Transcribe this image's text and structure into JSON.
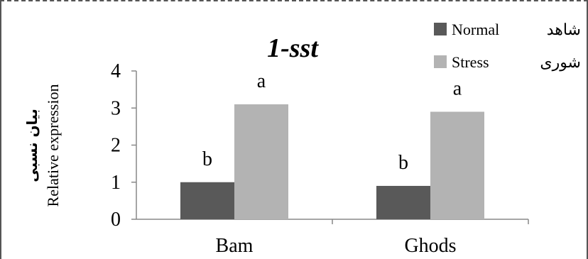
{
  "chart_data": {
    "type": "bar",
    "title": "1-sst",
    "ylabel_fa": "بیان نسبی",
    "ylabel": "Relative expression",
    "categories": [
      "Bam",
      "Ghods"
    ],
    "ylim": [
      0,
      4
    ],
    "yticks": [
      "0",
      "1",
      "2",
      "3",
      "4"
    ],
    "series": [
      {
        "name": "Normal",
        "name_fa": "شاهد",
        "color": "#595959",
        "values": [
          1.0,
          0.9
        ],
        "labels": [
          "b",
          "b"
        ]
      },
      {
        "name": "Stress",
        "name_fa": "شوری",
        "color": "#b3b3b3",
        "values": [
          3.1,
          2.9
        ],
        "labels": [
          "a",
          "a"
        ]
      }
    ],
    "legend_position": "top-right",
    "grid": false
  }
}
